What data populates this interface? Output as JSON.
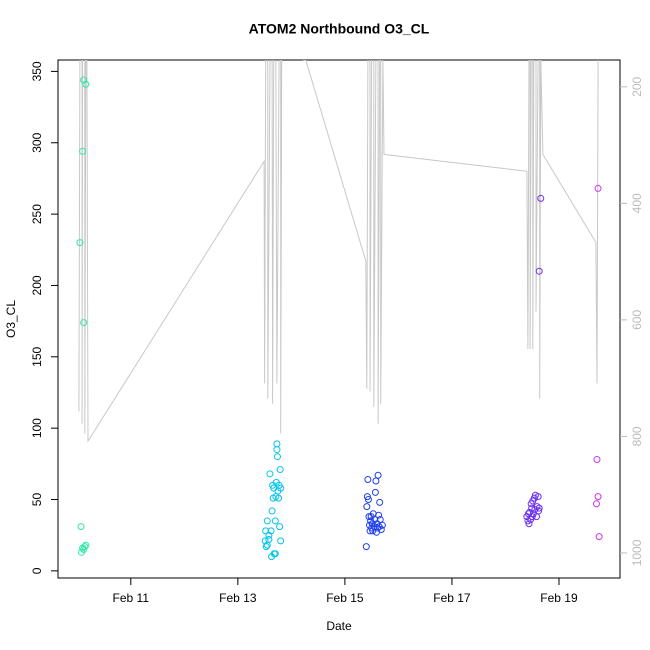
{
  "chart_data": {
    "type": "scatter",
    "title": "ATOM2 Northbound O3_CL",
    "x_label": "Date",
    "y_label": "O3_CL",
    "xlim": [
      9.64,
      20.14
    ],
    "xticks": [
      {
        "value": 11,
        "label": "Feb 11"
      },
      {
        "value": 13,
        "label": "Feb 13"
      },
      {
        "value": 15,
        "label": "Feb 15"
      },
      {
        "value": 17,
        "label": "Feb 17"
      },
      {
        "value": 19,
        "label": "Feb 19"
      }
    ],
    "ylim": [
      -5,
      358
    ],
    "yticks": [
      0,
      50,
      100,
      150,
      200,
      250,
      300,
      350
    ],
    "y2lim": [
      1043,
      154
    ],
    "y2ticks": [
      200,
      400,
      600,
      800,
      1000
    ],
    "series": [
      {
        "type": "line",
        "axis": "y2",
        "color": "#c8c8c8",
        "x": [
          10.03,
          10.05,
          10.09,
          10.09,
          10.1,
          10.14,
          10.14,
          10.16,
          10.18,
          10.2,
          13.49,
          13.5,
          13.52,
          13.56,
          13.56,
          13.6,
          13.64,
          13.65,
          13.67,
          13.71,
          13.73,
          13.77,
          13.8,
          13.8,
          13.82,
          13.86,
          14.27,
          15.39,
          15.41,
          15.43,
          15.47,
          15.47,
          15.5,
          15.54,
          15.54,
          15.58,
          15.62,
          15.62,
          15.65,
          15.67,
          15.67,
          15.71,
          15.73,
          18.4,
          18.42,
          18.44,
          18.46,
          18.46,
          18.48,
          18.51,
          18.51,
          18.53,
          18.57,
          18.57,
          18.61,
          18.64,
          18.64,
          18.66,
          18.7,
          19.69,
          19.71,
          19.73
        ],
        "values": [
          757,
          150,
          150,
          778,
          150,
          150,
          795,
          150,
          150,
          808,
          328,
          709,
          150,
          150,
          735,
          150,
          150,
          744,
          150,
          150,
          709,
          150,
          150,
          795,
          150,
          150,
          154,
          499,
          718,
          150,
          150,
          723,
          150,
          150,
          749,
          150,
          150,
          778,
          150,
          150,
          744,
          150,
          316,
          345,
          650,
          150,
          150,
          650,
          150,
          150,
          650,
          150,
          150,
          586,
          150,
          150,
          735,
          150,
          316,
          467,
          709,
          150
        ]
      },
      {
        "type": "scatter",
        "color": "#2ee8a6",
        "x": [
          10.05,
          10.1,
          10.12,
          10.16,
          10.12,
          10.07,
          10.08,
          10.1,
          10.14,
          10.16,
          10.12
        ],
        "values": [
          230,
          294,
          344,
          341,
          174,
          31,
          13,
          16,
          17,
          18,
          15
        ]
      },
      {
        "type": "scatter",
        "color": "#00c4ee",
        "x": [
          13.51,
          13.53,
          13.55,
          13.52,
          13.55,
          13.58,
          13.58,
          13.6,
          13.62,
          13.63,
          13.64,
          13.65,
          13.66,
          13.67,
          13.68,
          13.7,
          13.7,
          13.71,
          13.72,
          13.73,
          13.73,
          13.74,
          13.75,
          13.76,
          13.77,
          13.78,
          13.79,
          13.8,
          13.8
        ],
        "values": [
          21,
          17,
          18,
          28,
          35,
          22,
          25,
          68,
          28,
          10,
          42,
          60,
          51,
          58,
          12,
          12,
          35,
          52,
          62,
          85,
          89,
          80,
          56,
          51,
          60,
          31,
          71,
          21,
          58
        ]
      },
      {
        "type": "scatter",
        "color": "#2040ee",
        "x": [
          15.4,
          15.41,
          15.42,
          15.43,
          15.44,
          15.45,
          15.46,
          15.47,
          15.48,
          15.49,
          15.5,
          15.51,
          15.52,
          15.53,
          15.55,
          15.56,
          15.57,
          15.58,
          15.59,
          15.6,
          15.61,
          15.62,
          15.63,
          15.64,
          15.65,
          15.66,
          15.68,
          15.7
        ],
        "values": [
          17,
          45,
          52,
          64,
          50,
          38,
          32,
          28,
          35,
          38,
          30,
          33,
          28,
          40,
          31,
          36,
          55,
          63,
          27,
          33,
          30,
          67,
          39,
          31,
          48,
          36,
          29,
          32
        ]
      },
      {
        "type": "scatter",
        "color": "#6a30ee",
        "x": [
          18.4,
          18.42,
          18.43,
          18.44,
          18.45,
          18.47,
          18.48,
          18.49,
          18.5,
          18.51,
          18.52,
          18.54,
          18.55,
          18.56,
          18.63,
          18.58,
          18.59,
          18.66,
          18.61,
          18.62,
          18.63
        ],
        "values": [
          38,
          35,
          40,
          33,
          41,
          36,
          47,
          44,
          38,
          49,
          40,
          51,
          43,
          53,
          210,
          38,
          45,
          261,
          52,
          42,
          44
        ]
      },
      {
        "type": "scatter",
        "color": "#cc33ee",
        "x": [
          19.71,
          19.73,
          19.73,
          19.7,
          19.75
        ],
        "values": [
          78,
          268,
          52,
          47,
          24
        ]
      }
    ]
  }
}
